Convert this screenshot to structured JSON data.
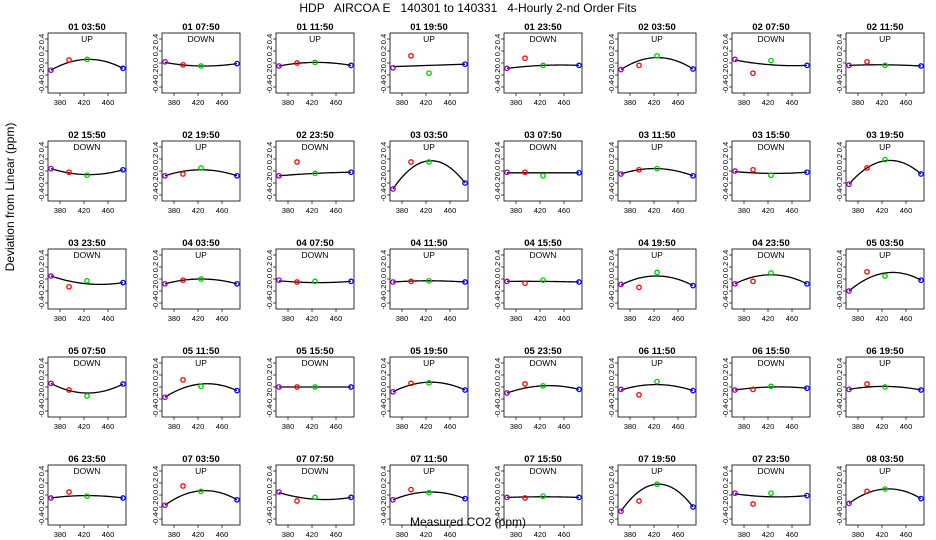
{
  "title": "HDP   AIRCOA E   140301 to 140331   4-Hourly 2-nd Order Fits",
  "xlabel": "Measured CO2 (ppm)",
  "ylabel": "Deviation from Linear (ppm)",
  "colors": {
    "line": "#000000",
    "red": "#ff0000",
    "green": "#00cc00",
    "blue": "#0000ff",
    "purple": "#9900cc"
  },
  "chart_data": {
    "type": "scatter",
    "description_of_panels": "4-hourly quadratic residual fits; each panel has 4 standard points and a fitted curve",
    "xlim": [
      360,
      490
    ],
    "ylim": [
      -0.5,
      0.5
    ],
    "xticks": [
      380,
      420,
      460
    ],
    "xtick_labels": [
      "380",
      "420",
      "460"
    ],
    "yticks": [
      -0.4,
      -0.2,
      0.0,
      0.2,
      0.4
    ],
    "ytick_labels": [
      "-0.4",
      "-0.2",
      "0.0",
      "0.2",
      "0.4"
    ],
    "std_x": [
      365,
      395,
      425,
      485
    ],
    "panels": [
      {
        "time": "01 03:50",
        "dir": "UP",
        "pts": [
          -0.12,
          0.05,
          0.06,
          -0.09
        ],
        "fit": [
          -0.12,
          0.02,
          0.06,
          -0.09
        ]
      },
      {
        "time": "01 07:50",
        "dir": "DOWN",
        "pts": [
          0.02,
          -0.03,
          -0.05,
          -0.01
        ],
        "fit": [
          0.01,
          -0.03,
          -0.05,
          -0.01
        ]
      },
      {
        "time": "01 11:50",
        "dir": "UP",
        "pts": [
          -0.05,
          0.0,
          0.01,
          -0.04
        ],
        "fit": [
          -0.05,
          -0.01,
          0.01,
          -0.04
        ]
      },
      {
        "time": "01 19:50",
        "dir": "UP",
        "pts": [
          -0.08,
          0.12,
          -0.17,
          -0.02
        ],
        "fit": [
          -0.06,
          -0.05,
          -0.04,
          -0.02
        ]
      },
      {
        "time": "01 23:50",
        "dir": "DOWN",
        "pts": [
          -0.09,
          0.08,
          -0.04,
          -0.04
        ],
        "fit": [
          -0.09,
          -0.05,
          -0.04,
          -0.04
        ]
      },
      {
        "time": "02 03:50",
        "dir": "UP",
        "pts": [
          -0.11,
          -0.04,
          0.12,
          -0.1
        ],
        "fit": [
          -0.11,
          0.04,
          0.09,
          -0.1
        ]
      },
      {
        "time": "02 07:50",
        "dir": "DOWN",
        "pts": [
          0.06,
          -0.17,
          0.04,
          -0.04
        ],
        "fit": [
          0.05,
          -0.02,
          -0.03,
          -0.04
        ]
      },
      {
        "time": "02 11:50",
        "dir": "UP",
        "pts": [
          -0.04,
          0.02,
          -0.04,
          -0.05
        ],
        "fit": [
          -0.04,
          -0.02,
          -0.03,
          -0.05
        ]
      },
      {
        "time": "02 15:50",
        "dir": "DOWN",
        "pts": [
          0.04,
          -0.02,
          -0.07,
          0.02
        ],
        "fit": [
          0.04,
          -0.03,
          -0.06,
          0.02
        ]
      },
      {
        "time": "02 19:50",
        "dir": "UP",
        "pts": [
          -0.08,
          -0.05,
          0.05,
          -0.08
        ],
        "fit": [
          -0.08,
          -0.02,
          0.02,
          -0.08
        ]
      },
      {
        "time": "02 23:50",
        "dir": "DOWN",
        "pts": [
          -0.08,
          0.15,
          -0.04,
          -0.02
        ],
        "fit": [
          -0.08,
          -0.06,
          -0.04,
          -0.02
        ]
      },
      {
        "time": "03 03:50",
        "dir": "UP",
        "pts": [
          -0.3,
          0.15,
          0.15,
          -0.2
        ],
        "fit": [
          -0.3,
          0.05,
          0.17,
          -0.2
        ]
      },
      {
        "time": "03 07:50",
        "dir": "DOWN",
        "pts": [
          -0.02,
          -0.02,
          -0.08,
          -0.03
        ],
        "fit": [
          -0.03,
          -0.03,
          -0.03,
          -0.03
        ]
      },
      {
        "time": "03 11:50",
        "dir": "UP",
        "pts": [
          -0.05,
          0.02,
          0.04,
          -0.08
        ],
        "fit": [
          -0.05,
          0.02,
          0.04,
          -0.08
        ]
      },
      {
        "time": "03 15:50",
        "dir": "DOWN",
        "pts": [
          0.0,
          0.02,
          -0.07,
          -0.02
        ],
        "fit": [
          -0.01,
          -0.03,
          -0.04,
          -0.02
        ]
      },
      {
        "time": "03 19:50",
        "dir": "UP",
        "pts": [
          -0.22,
          0.05,
          0.19,
          -0.05
        ],
        "fit": [
          -0.22,
          0.07,
          0.17,
          -0.05
        ]
      },
      {
        "time": "03 23:50",
        "dir": "DOWN",
        "pts": [
          0.05,
          -0.13,
          -0.03,
          -0.06
        ],
        "fit": [
          0.05,
          -0.04,
          -0.08,
          -0.06
        ]
      },
      {
        "time": "04 03:50",
        "dir": "UP",
        "pts": [
          -0.08,
          -0.02,
          0.0,
          -0.08
        ],
        "fit": [
          -0.08,
          -0.03,
          0.0,
          -0.08
        ]
      },
      {
        "time": "04 07:50",
        "dir": "DOWN",
        "pts": [
          -0.02,
          -0.05,
          -0.04,
          -0.04
        ],
        "fit": [
          -0.03,
          -0.05,
          -0.06,
          -0.04
        ]
      },
      {
        "time": "04 11:50",
        "dir": "UP",
        "pts": [
          -0.05,
          -0.04,
          -0.03,
          -0.05
        ],
        "fit": [
          -0.05,
          -0.04,
          -0.03,
          -0.05
        ]
      },
      {
        "time": "04 15:50",
        "dir": "DOWN",
        "pts": [
          -0.04,
          -0.07,
          -0.02,
          -0.05
        ],
        "fit": [
          -0.04,
          -0.04,
          -0.04,
          -0.05
        ]
      },
      {
        "time": "04 19:50",
        "dir": "UP",
        "pts": [
          -0.09,
          -0.14,
          0.11,
          -0.11
        ],
        "fit": [
          -0.1,
          0.0,
          0.05,
          -0.11
        ]
      },
      {
        "time": "04 23:50",
        "dir": "DOWN",
        "pts": [
          -0.08,
          -0.04,
          0.1,
          -0.08
        ],
        "fit": [
          -0.08,
          0.01,
          0.07,
          -0.08
        ]
      },
      {
        "time": "05 03:50",
        "dir": "UP",
        "pts": [
          -0.2,
          0.12,
          0.05,
          -0.02
        ],
        "fit": [
          -0.2,
          0.0,
          0.1,
          -0.02
        ]
      },
      {
        "time": "05 07:50",
        "dir": "DOWN",
        "pts": [
          0.06,
          -0.05,
          -0.15,
          0.05
        ],
        "fit": [
          0.06,
          -0.06,
          -0.1,
          0.05
        ]
      },
      {
        "time": "05 11:50",
        "dir": "UP",
        "pts": [
          -0.17,
          0.12,
          0.01,
          -0.06
        ],
        "fit": [
          -0.17,
          -0.02,
          0.05,
          -0.06
        ]
      },
      {
        "time": "05 15:50",
        "dir": "DOWN",
        "pts": [
          0.0,
          0.0,
          0.0,
          0.0
        ],
        "fit": [
          0.0,
          0.0,
          0.0,
          0.0
        ]
      },
      {
        "time": "05 19:50",
        "dir": "UP",
        "pts": [
          -0.08,
          0.06,
          0.07,
          -0.05
        ],
        "fit": [
          -0.08,
          0.04,
          0.08,
          -0.05
        ]
      },
      {
        "time": "05 23:50",
        "dir": "DOWN",
        "pts": [
          -0.1,
          0.05,
          0.02,
          -0.04
        ],
        "fit": [
          -0.1,
          -0.01,
          0.02,
          -0.04
        ]
      },
      {
        "time": "06 11:50",
        "dir": "UP",
        "pts": [
          -0.04,
          -0.13,
          0.09,
          -0.06
        ],
        "fit": [
          -0.05,
          0.0,
          0.04,
          -0.06
        ]
      },
      {
        "time": "06 15:50",
        "dir": "DOWN",
        "pts": [
          -0.05,
          -0.04,
          0.01,
          -0.02
        ],
        "fit": [
          -0.05,
          -0.02,
          0.0,
          -0.02
        ]
      },
      {
        "time": "06 19:50",
        "dir": "UP",
        "pts": [
          -0.04,
          0.05,
          0.0,
          -0.05
        ],
        "fit": [
          -0.04,
          0.0,
          0.01,
          -0.05
        ]
      },
      {
        "time": "06 23:50",
        "dir": "DOWN",
        "pts": [
          -0.05,
          0.05,
          -0.02,
          -0.05
        ],
        "fit": [
          -0.05,
          -0.02,
          -0.01,
          -0.05
        ]
      },
      {
        "time": "07 03:50",
        "dir": "UP",
        "pts": [
          -0.17,
          0.15,
          0.06,
          -0.08
        ],
        "fit": [
          -0.17,
          0.0,
          0.07,
          -0.08
        ]
      },
      {
        "time": "07 07:50",
        "dir": "DOWN",
        "pts": [
          0.05,
          -0.1,
          -0.04,
          -0.04
        ],
        "fit": [
          0.04,
          -0.04,
          -0.07,
          -0.04
        ]
      },
      {
        "time": "07 11:50",
        "dir": "UP",
        "pts": [
          -0.08,
          0.09,
          0.04,
          -0.06
        ],
        "fit": [
          -0.08,
          0.02,
          0.05,
          -0.06
        ]
      },
      {
        "time": "07 15:50",
        "dir": "DOWN",
        "pts": [
          -0.04,
          -0.05,
          -0.02,
          -0.04
        ],
        "fit": [
          -0.04,
          -0.03,
          -0.03,
          -0.04
        ]
      },
      {
        "time": "07 19:50",
        "dir": "UP",
        "pts": [
          -0.27,
          -0.1,
          0.18,
          -0.2
        ],
        "fit": [
          -0.27,
          0.08,
          0.18,
          -0.2
        ]
      },
      {
        "time": "07 23:50",
        "dir": "DOWN",
        "pts": [
          0.03,
          -0.15,
          0.03,
          -0.01
        ],
        "fit": [
          0.02,
          -0.03,
          -0.03,
          -0.01
        ]
      },
      {
        "time": "08 03:50",
        "dir": "UP",
        "pts": [
          -0.14,
          0.06,
          0.1,
          -0.06
        ],
        "fit": [
          -0.14,
          0.06,
          0.1,
          -0.06
        ]
      }
    ]
  }
}
